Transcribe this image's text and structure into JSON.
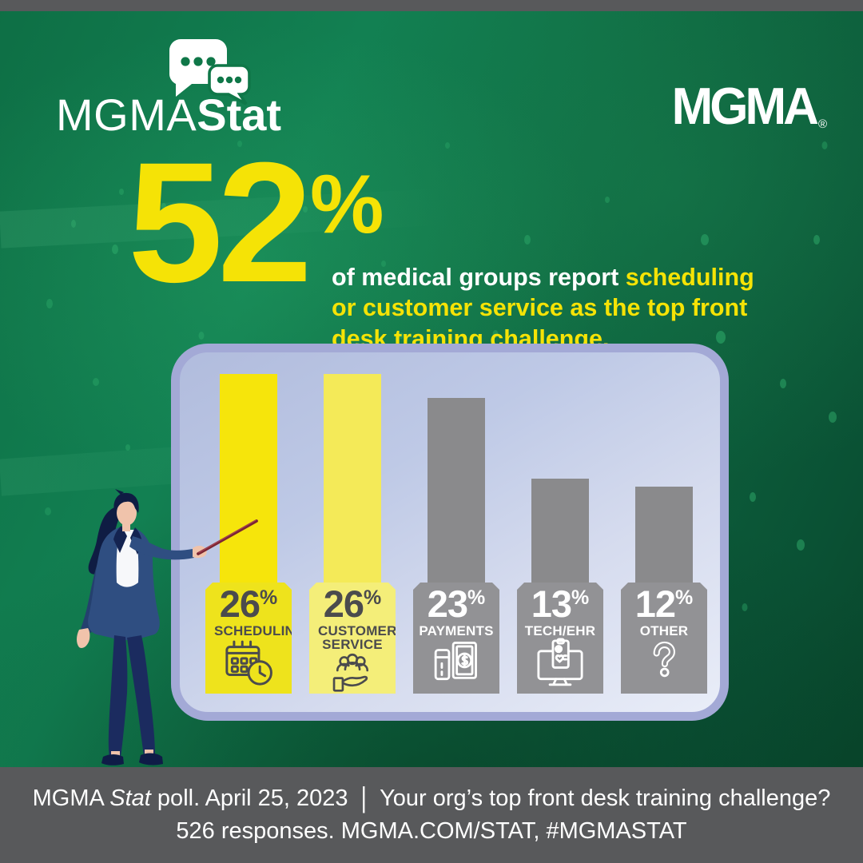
{
  "logos": {
    "stat": {
      "mgma": "MGMA",
      "stat": "Stat",
      "bubbles_icon": "chat-bubbles-icon"
    },
    "corporate": {
      "name": "MGMA",
      "registered": "®"
    }
  },
  "headline": {
    "value": "52",
    "percent_sign": "%",
    "lead_white": "of medical groups report ",
    "lead_yellow": "scheduling or customer service as the top front desk training challenge."
  },
  "chart_data": {
    "type": "bar",
    "title": "Top front desk training challenge",
    "categories": [
      "SCHEDULING",
      "CUSTOMER SERVICE",
      "PAYMENTS",
      "TECH/EHR",
      "OTHER"
    ],
    "values": [
      26,
      26,
      23,
      13,
      12
    ],
    "value_labels": [
      "26",
      "26",
      "23",
      "13",
      "12"
    ],
    "unit": "%",
    "ylim": [
      0,
      26
    ],
    "grid": false,
    "legend": "none",
    "bar_colors": [
      "#f6e50b",
      "#f4ea58",
      "#8a8a8c",
      "#8a8a8c",
      "#8a8a8c"
    ],
    "pedestal_colors": [
      "#eee31c",
      "#f4ee79",
      "#929295",
      "#929295",
      "#929295"
    ],
    "label_colors": [
      "#4b4b4d",
      "#4b4b4d",
      "#ffffff",
      "#ffffff",
      "#ffffff"
    ],
    "icons": [
      "calendar-clock-icon",
      "customer-service-icon",
      "payments-icon",
      "tech-ehr-icon",
      "question-mark-icon"
    ]
  },
  "footer": {
    "brand": "MGMA ",
    "brand_italic": "Stat",
    "line1_rest": " poll. April 25, 2023",
    "separator": "|",
    "question": "Your org’s top front desk training challenge?",
    "line2": "526 responses. MGMA.COM/STAT, #MGMASTAT"
  },
  "colors": {
    "background_green": "#0f6a42",
    "accent_yellow": "#f5e306",
    "light_yellow": "#f4ee79",
    "bar_gray": "#8a8a8c",
    "panel_fill": "#c9d2ea",
    "panel_border": "#a3a9d6",
    "footer_gray": "#58595b",
    "text_dark": "#4b4b4d",
    "text_white": "#ffffff"
  }
}
